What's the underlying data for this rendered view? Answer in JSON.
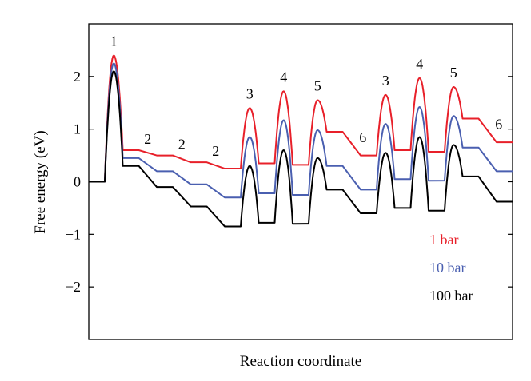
{
  "chart_data": {
    "type": "line",
    "title": "",
    "xlabel": "Reaction coordinate",
    "ylabel": "Free energy (eV)",
    "ylim": [
      -3,
      3
    ],
    "yticks": [
      -2,
      -1,
      0,
      1,
      2
    ],
    "grid": false,
    "legend_placement": "bottom-right",
    "steps": [
      {
        "type": "barrier",
        "label": "1"
      },
      {
        "type": "slope",
        "label": "2"
      },
      {
        "type": "slope",
        "label": "2"
      },
      {
        "type": "slope",
        "label": "2"
      },
      {
        "type": "barrier",
        "label": "3"
      },
      {
        "type": "barrier",
        "label": "4"
      },
      {
        "type": "barrier",
        "label": "5"
      },
      {
        "type": "slope",
        "label": "6"
      },
      {
        "type": "barrier",
        "label": "3"
      },
      {
        "type": "barrier",
        "label": "4"
      },
      {
        "type": "barrier",
        "label": "5"
      },
      {
        "type": "slope",
        "label": "6"
      }
    ],
    "series": [
      {
        "name": "1 bar",
        "color": "#e8202a",
        "levels": [
          0,
          0.6,
          0.5,
          0.37,
          0.25,
          0.35,
          0.32,
          0.95,
          0.5,
          0.6,
          0.57,
          1.2,
          0.75
        ],
        "peaks": [
          2.4,
          null,
          null,
          null,
          1.4,
          1.72,
          1.55,
          null,
          1.65,
          1.97,
          1.8,
          null
        ]
      },
      {
        "name": "10 bar",
        "color": "#4a5fb0",
        "levels": [
          0,
          0.45,
          0.2,
          -0.05,
          -0.3,
          -0.22,
          -0.25,
          0.3,
          -0.15,
          0.05,
          0.02,
          0.65,
          0.2
        ],
        "peaks": [
          2.25,
          null,
          null,
          null,
          0.85,
          1.17,
          0.98,
          null,
          1.1,
          1.42,
          1.25,
          null
        ]
      },
      {
        "name": "100 bar",
        "color": "#000000",
        "levels": [
          0,
          0.3,
          -0.1,
          -0.47,
          -0.85,
          -0.78,
          -0.8,
          -0.15,
          -0.6,
          -0.5,
          -0.55,
          0.1,
          -0.38
        ],
        "peaks": [
          2.1,
          null,
          null,
          null,
          0.3,
          0.6,
          0.45,
          null,
          0.55,
          0.85,
          0.7,
          null
        ]
      }
    ]
  }
}
